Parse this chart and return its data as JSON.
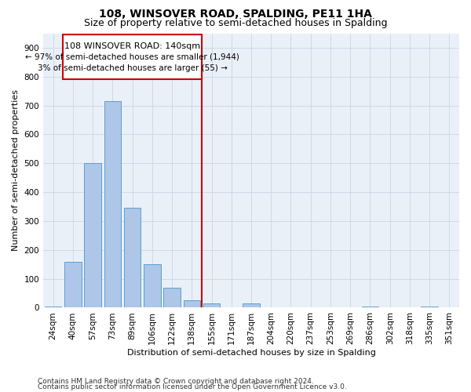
{
  "title": "108, WINSOVER ROAD, SPALDING, PE11 1HA",
  "subtitle": "Size of property relative to semi-detached houses in Spalding",
  "xlabel": "Distribution of semi-detached houses by size in Spalding",
  "ylabel": "Number of semi-detached properties",
  "footer1": "Contains HM Land Registry data © Crown copyright and database right 2024.",
  "footer2": "Contains public sector information licensed under the Open Government Licence v3.0.",
  "annotation_title": "108 WINSOVER ROAD: 140sqm",
  "annotation_line1": "← 97% of semi-detached houses are smaller (1,944)",
  "annotation_line2": "3% of semi-detached houses are larger (55) →",
  "categories": [
    "24sqm",
    "40sqm",
    "57sqm",
    "73sqm",
    "89sqm",
    "106sqm",
    "122sqm",
    "138sqm",
    "155sqm",
    "171sqm",
    "187sqm",
    "204sqm",
    "220sqm",
    "237sqm",
    "253sqm",
    "269sqm",
    "286sqm",
    "302sqm",
    "318sqm",
    "335sqm",
    "351sqm"
  ],
  "values": [
    5,
    160,
    500,
    715,
    345,
    150,
    70,
    25,
    15,
    0,
    15,
    0,
    0,
    0,
    0,
    0,
    5,
    0,
    0,
    5,
    0
  ],
  "bar_color": "#aec6e8",
  "bar_edge_color": "#5a9fd4",
  "vline_color": "#cc0000",
  "vline_x": 7.5,
  "ylim": [
    0,
    950
  ],
  "yticks": [
    0,
    100,
    200,
    300,
    400,
    500,
    600,
    700,
    800,
    900
  ],
  "bg_color": "#ffffff",
  "grid_color": "#d0d8e8",
  "ax_bg_color": "#eaf0f8",
  "title_fontsize": 10,
  "subtitle_fontsize": 9,
  "axis_label_fontsize": 8,
  "tick_fontsize": 7.5,
  "annotation_fontsize": 8,
  "footer_fontsize": 6.5
}
